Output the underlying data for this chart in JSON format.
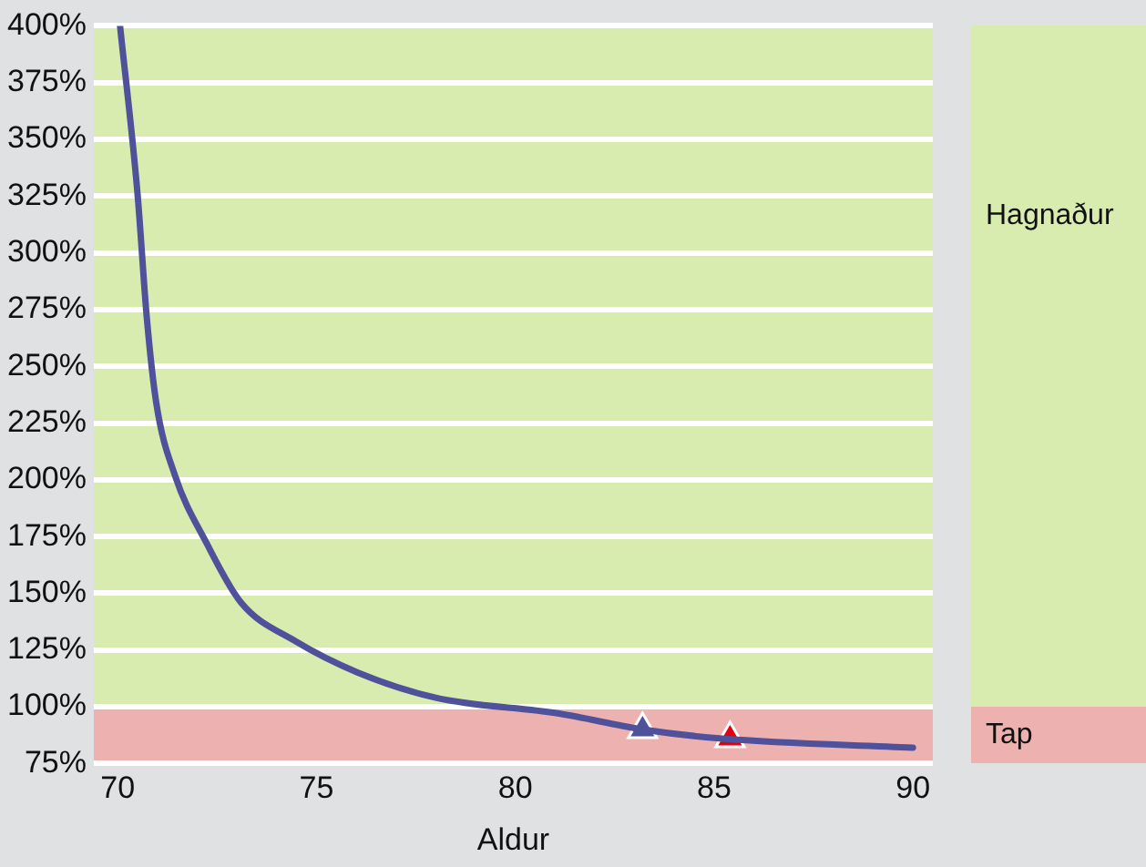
{
  "chart_data": {
    "type": "line",
    "xlabel": "Aldur",
    "xlim": [
      69.4,
      90.5
    ],
    "xticks": [
      70,
      75,
      80,
      85,
      90
    ],
    "ylim": [
      75,
      400
    ],
    "yticks": [
      {
        "value": 75,
        "label": "75%"
      },
      {
        "value": 100,
        "label": "100%"
      },
      {
        "value": 125,
        "label": "125%"
      },
      {
        "value": 150,
        "label": "150%"
      },
      {
        "value": 175,
        "label": "175%"
      },
      {
        "value": 200,
        "label": "200%"
      },
      {
        "value": 225,
        "label": "225%"
      },
      {
        "value": 250,
        "label": "250%"
      },
      {
        "value": 275,
        "label": "275%"
      },
      {
        "value": 300,
        "label": "300%"
      },
      {
        "value": 325,
        "label": "325%"
      },
      {
        "value": 350,
        "label": "350%"
      },
      {
        "value": 375,
        "label": "375%"
      },
      {
        "value": 400,
        "label": "400%"
      }
    ],
    "grid": "y",
    "legend": false,
    "bands": [
      {
        "axis": "y",
        "from": 100,
        "to": 400,
        "label": "Hagnaður",
        "color": "#d9ecb0"
      },
      {
        "axis": "y",
        "from": 75,
        "to": 100,
        "label": "Tap",
        "color": "#edb1b0"
      }
    ],
    "series": [
      {
        "type": "line",
        "color": "#4f519b",
        "marker": "none",
        "x": [
          70.06,
          70.5,
          70.73,
          70.97,
          71.44,
          72.24,
          73.1,
          74.46,
          76.05,
          78,
          81.1,
          83.2,
          85.2,
          90
        ],
        "values": [
          400,
          326,
          272,
          234,
          202,
          172,
          146,
          129,
          115,
          104,
          97,
          90,
          86,
          82
        ]
      },
      {
        "type": "scatter",
        "color": "#4f519b",
        "marker": "triangle",
        "x": [
          83.2
        ],
        "values": [
          90
        ]
      },
      {
        "type": "scatter",
        "color": "#e3000f",
        "marker": "triangle",
        "x": [
          85.4
        ],
        "values": [
          86
        ]
      }
    ]
  }
}
